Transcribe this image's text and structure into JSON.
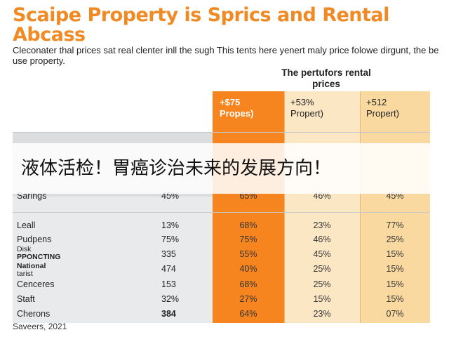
{
  "title": "Scaipe Property is Sprics and Rental Abcass",
  "subtitle": "Cleconater thal prices sat real clenter inll the sugh This tents here yenert maly price folowe dirgunt, the be use property.",
  "column_group_heading": "The pertufors rental prices",
  "table": {
    "headers": [
      {
        "line1": "+$75",
        "line2": "Propes)"
      },
      {
        "line1": "+53%",
        "line2": "Propert)"
      },
      {
        "line1": "+512",
        "line2": "Propert)"
      }
    ],
    "rows": [
      {
        "label": "Sarings",
        "v1": "45%",
        "v2": "65%",
        "v3": "46%",
        "v4": "45%"
      },
      {
        "label": "Leall",
        "v1": "13%",
        "v2": "68%",
        "v3": "23%",
        "v4": "77%"
      },
      {
        "label": "Pudpens",
        "v1": "75%",
        "v2": "75%",
        "v3": "46%",
        "v4": "25%"
      },
      {
        "label_line1": "Disk",
        "label_line2": "PPONCTING",
        "v1": "335",
        "v2": "55%",
        "v3": "45%",
        "v4": "15%"
      },
      {
        "label_line1": "National",
        "label_line2": "tarist",
        "v1": "474",
        "v2": "40%",
        "v3": "25%",
        "v4": "15%"
      },
      {
        "label": "Cenceres",
        "v1": "153",
        "v2": "68%",
        "v3": "25%",
        "v4": "15%"
      },
      {
        "label": "Staft",
        "v1": "32%",
        "v2": "27%",
        "v3": "15%",
        "v4": "15%"
      },
      {
        "label": "Cherons",
        "v1": "384",
        "v2": "64%",
        "v3": "23%",
        "v4": "07%"
      }
    ]
  },
  "source": "Saveers, 2021",
  "overlay_caption": "液体活检！胃癌诊治未来的发展方向！",
  "colors": {
    "title": "#f08a24",
    "orange_column": "#f6841f",
    "light_column_1": "#fce7c5",
    "light_column_2": "#fad9a1",
    "left_background": "#e9eaeb"
  }
}
